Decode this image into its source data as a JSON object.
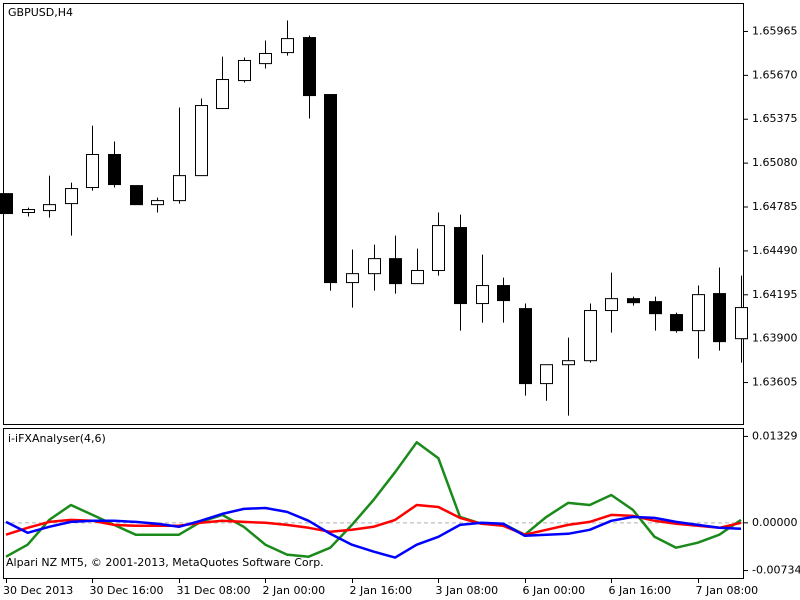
{
  "chart_data": [
    {
      "type": "candlestick",
      "title": "GBPUSD,H4",
      "categories": [
        "30 Dec 2013",
        null,
        null,
        null,
        "30 Dec 16:00",
        null,
        null,
        null,
        "31 Dec 08:00",
        null,
        null,
        null,
        "2 Jan 00:00",
        null,
        null,
        null,
        "2 Jan 16:00",
        null,
        null,
        null,
        "3 Jan 08:00",
        null,
        null,
        null,
        "6 Jan 00:00",
        null,
        null,
        null,
        "6 Jan 16:00",
        null,
        null,
        null,
        "7 Jan 08:00",
        null,
        null
      ],
      "open": [
        1.64875,
        1.64748,
        1.64761,
        1.64808,
        1.64916,
        1.65138,
        1.64929,
        1.64801,
        1.64828,
        1.64996,
        1.65447,
        1.65635,
        1.65749,
        1.65823,
        1.65924,
        1.65541,
        1.64277,
        1.64337,
        1.64438,
        1.6427,
        1.64358,
        1.64647,
        1.64136,
        1.64257,
        1.64102,
        1.63598,
        1.63725,
        1.63752,
        1.64089,
        1.64169,
        1.64149,
        1.64062,
        1.63954,
        1.64203,
        1.639
      ],
      "high": [
        1.64875,
        1.64781,
        1.64996,
        1.64949,
        1.65332,
        1.65225,
        1.64929,
        1.64848,
        1.65454,
        1.65514,
        1.65796,
        1.6579,
        1.65904,
        1.66039,
        1.65938,
        1.65541,
        1.64499,
        1.64532,
        1.64593,
        1.64505,
        1.64748,
        1.64734,
        1.64465,
        1.6431,
        1.64136,
        1.63725,
        1.63907,
        1.64136,
        1.64344,
        1.64183,
        1.64183,
        1.64075,
        1.64257,
        1.64378,
        1.64324
      ],
      "low": [
        1.64741,
        1.64721,
        1.64714,
        1.64593,
        1.64895,
        1.64916,
        1.64801,
        1.64748,
        1.64808,
        1.64996,
        1.65447,
        1.65622,
        1.65716,
        1.65803,
        1.6538,
        1.64223,
        1.64109,
        1.64223,
        1.64203,
        1.6427,
        1.64324,
        1.63954,
        1.64008,
        1.64008,
        1.63517,
        1.63483,
        1.63383,
        1.63739,
        1.63941,
        1.64122,
        1.63954,
        1.63941,
        1.63766,
        1.6382,
        1.63739
      ],
      "close": [
        1.64741,
        1.64768,
        1.64801,
        1.64909,
        1.65138,
        1.64936,
        1.64801,
        1.64828,
        1.64996,
        1.65467,
        1.65642,
        1.6577,
        1.65817,
        1.65917,
        1.65534,
        1.64277,
        1.64337,
        1.64438,
        1.6427,
        1.64358,
        1.6466,
        1.64136,
        1.64257,
        1.64156,
        1.63598,
        1.63725,
        1.63752,
        1.64089,
        1.64169,
        1.64142,
        1.64068,
        1.63954,
        1.64196,
        1.6388,
        1.64109
      ],
      "up_color": "#ffffff",
      "down_color": "#000000",
      "ylim": [
        1.63323,
        1.66153
      ],
      "yticks": [
        1.65965,
        {
          "value": 1.6567,
          "label": "1.65670"
        },
        1.65375,
        {
          "value": 1.6508,
          "label": "1.65080"
        },
        1.64785,
        {
          "value": 1.6449,
          "label": "1.64490"
        },
        1.64195,
        {
          "value": 1.639,
          "label": "1.63900"
        },
        1.63605
      ]
    },
    {
      "type": "line",
      "title": "i-iFXAnalyser(4,6)",
      "annotation": "Alpari NZ MT5, © 2001-2013, MetaQuotes Software Corp.",
      "series": [
        {
          "color": "#1a8a1a",
          "values": [
            -0.0052,
            -0.00336,
            0.00046,
            0.00275,
            0.00122,
            -0.00031,
            -0.00183,
            -0.00183,
            -0.00183,
            0.00015,
            0.00122,
            -0.00061,
            -0.00336,
            -0.00489,
            -0.0052,
            -0.00382,
            -0.00031,
            0.00351,
            0.00779,
            0.01238,
            0.00993,
            0.00092,
            -0.00015,
            -0.00015,
            -0.00183,
            0.00092,
            0.00306,
            0.00275,
            0.00428,
            0.00199,
            -0.00214,
            -0.00382,
            -0.00306,
            -0.00183,
            0.00046
          ]
        },
        {
          "color": "#ff0000",
          "values": [
            -0.00183,
            -0.00076,
            0.00015,
            0.00046,
            0.00031,
            -0.00031,
            -0.00046,
            -0.00046,
            -0.00046,
            0,
            0.00031,
            0.00015,
            0,
            -0.00031,
            -0.00076,
            -0.00138,
            -0.00107,
            -0.00061,
            0.00046,
            0.00275,
            0.00244,
            0.00076,
            -0.00015,
            -0.00046,
            -0.00183,
            -0.00107,
            -0.00031,
            0.00015,
            0.00122,
            0.00107,
            0.00031,
            -0.00015,
            -0.00046,
            -0.00076,
            0
          ]
        },
        {
          "color": "#0000ff",
          "values": [
            0.00015,
            -0.00153,
            -0.00061,
            0.00015,
            0.00031,
            0.00031,
            0.00015,
            -0.00015,
            -0.00061,
            0.00031,
            0.00138,
            0.00214,
            0.00229,
            0.00168,
            0.00031,
            -0.00168,
            -0.00336,
            -0.00443,
            -0.00535,
            -0.00336,
            -0.00214,
            -0.00031,
            0,
            -0.00015,
            -0.00199,
            -0.00183,
            -0.00168,
            -0.00107,
            0.00031,
            0.00092,
            0.00076,
            0.00015,
            -0.00031,
            -0.00076,
            -0.00092
          ]
        }
      ],
      "ylim": [
        -0.00856,
        0.01451
      ],
      "yticks": [
        0.01329,
        {
          "value": 0,
          "label": "0.00000"
        },
        -0.00734
      ]
    }
  ]
}
